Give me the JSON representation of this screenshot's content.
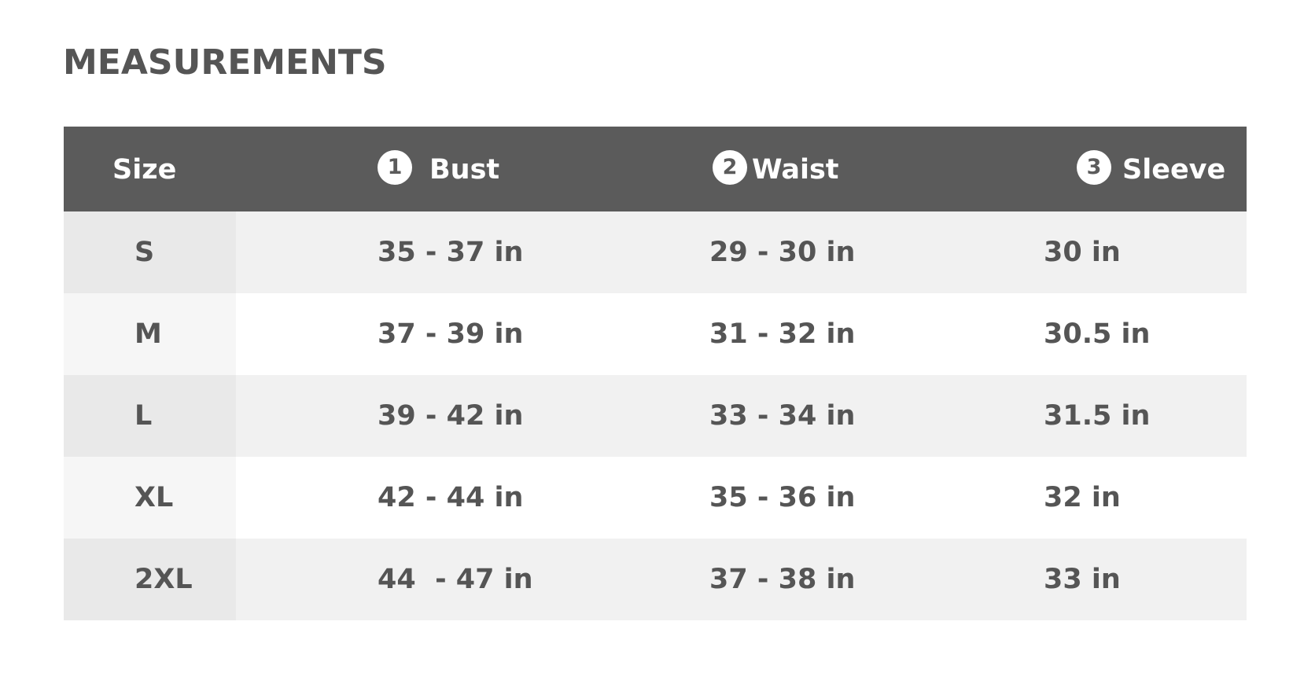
{
  "title": "MEASUREMENTS",
  "colors": {
    "header_bg": "#5b5b5b",
    "header_text": "#ffffff",
    "text": "#555555",
    "row_odd_size_bg": "#e9e9e9",
    "row_odd_bg": "#f1f1f1",
    "row_even_size_bg": "#f6f6f6",
    "row_even_bg": "#ffffff"
  },
  "table": {
    "headers": [
      {
        "label": "Size",
        "badge": ""
      },
      {
        "label": "Bust",
        "badge": "1"
      },
      {
        "label": "Waist",
        "badge": "2"
      },
      {
        "label": "Sleeve",
        "badge": "3"
      }
    ],
    "rows": [
      {
        "size": "S",
        "bust": "35 - 37 in",
        "waist": "29 - 30 in",
        "sleeve": "30 in"
      },
      {
        "size": "M",
        "bust": "37 - 39 in",
        "waist": "31 - 32 in",
        "sleeve": "30.5 in"
      },
      {
        "size": "L",
        "bust": "39 - 42 in",
        "waist": "33 - 34 in",
        "sleeve": "31.5 in"
      },
      {
        "size": "XL",
        "bust": "42 - 44 in",
        "waist": "35 - 36 in",
        "sleeve": "32 in"
      },
      {
        "size": "2XL",
        "bust": "44  - 47 in",
        "waist": "37 - 38 in",
        "sleeve": "33 in"
      }
    ]
  }
}
